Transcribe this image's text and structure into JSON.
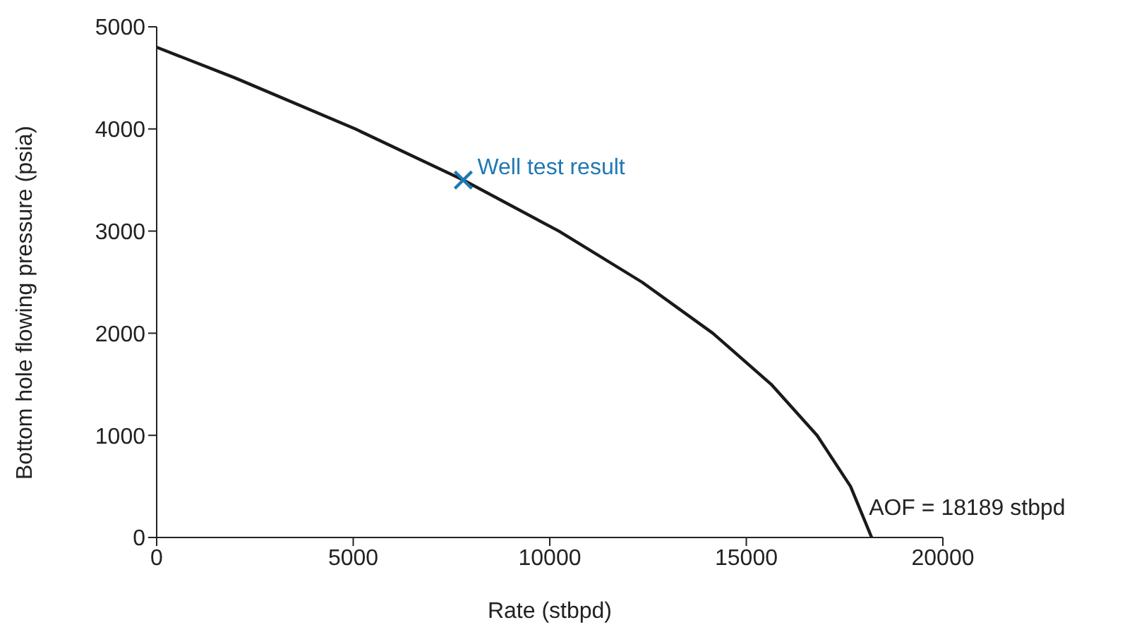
{
  "chart_data": {
    "type": "line",
    "xlabel": "Rate (stbpd)",
    "ylabel": "Bottom hole flowing pressure (psia)",
    "xlim": [
      0,
      20000
    ],
    "xticks": [
      0,
      5000,
      10000,
      15000,
      20000
    ],
    "ylim": [
      0,
      5000
    ],
    "yticks": [
      0,
      1000,
      2000,
      3000,
      4000,
      5000
    ],
    "grid": false,
    "legend": false,
    "series": [
      {
        "color": "#1a1a1a",
        "marker": "none",
        "line_style": "solid",
        "x": [
          0,
          1990,
          5053,
          7800,
          10231,
          12347,
          14147,
          15632,
          16800,
          17652,
          18189
        ],
        "values": [
          4800,
          4500,
          4000,
          3500,
          3000,
          2500,
          2000,
          1500,
          1000,
          500,
          0
        ]
      },
      {
        "type": "scatter",
        "color": "#1f78b4",
        "marker": "cross",
        "x": [
          7800
        ],
        "values": [
          3500
        ]
      }
    ],
    "annotations": [
      {
        "text": "Well test result",
        "x": 7800,
        "y": 3500
      },
      {
        "text": "AOF = 18189 stbpd",
        "x": 18189,
        "y": 0
      }
    ]
  }
}
